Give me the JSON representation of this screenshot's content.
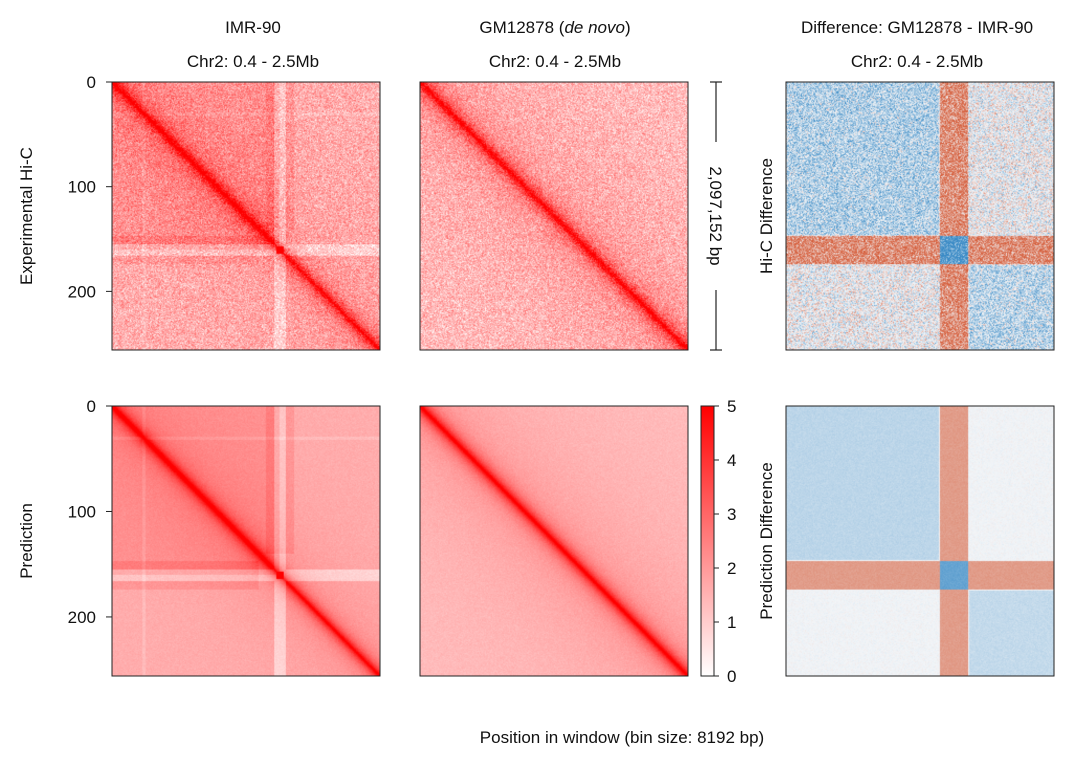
{
  "chart_data": {
    "type": "heatmap",
    "xlabel": "Position in window (bin size: 8192 bp)",
    "columns": [
      {
        "title_main": "IMR-90",
        "title_prefix": "",
        "title_italic": "",
        "title_suffix": "",
        "subtitle": "Chr2: 0.4 - 2.5Mb"
      },
      {
        "title_main": "",
        "title_prefix": "GM12878 (",
        "title_italic": "de novo",
        "title_suffix": ")",
        "subtitle": "Chr2: 0.4 - 2.5Mb"
      },
      {
        "title_main": "Difference: GM12878 - IMR-90",
        "title_prefix": "",
        "title_italic": "",
        "title_suffix": "",
        "subtitle": "Chr2: 0.4 - 2.5Mb"
      }
    ],
    "rows": [
      {
        "ylabel": "Experimental Hi-C",
        "diff_label": "Hi-C Difference"
      },
      {
        "ylabel": "Prediction",
        "diff_label": "Prediction Difference"
      }
    ],
    "yticks": [
      0,
      100,
      200
    ],
    "n_bins": 256,
    "window_label": "2,097,152 bp",
    "colorbar": {
      "min": 0,
      "max": 5,
      "ticks": [
        0,
        1,
        2,
        3,
        4,
        5
      ],
      "low_color": "#ffffff",
      "high_color": "#ff0000"
    },
    "features": {
      "imr90_boundary_bin": 160,
      "imr90_tad_bin": 30
    },
    "diff_colors": {
      "positive": "#d6603e",
      "negative": "#3b8bc6",
      "neutral": "#f2f5f8"
    }
  }
}
